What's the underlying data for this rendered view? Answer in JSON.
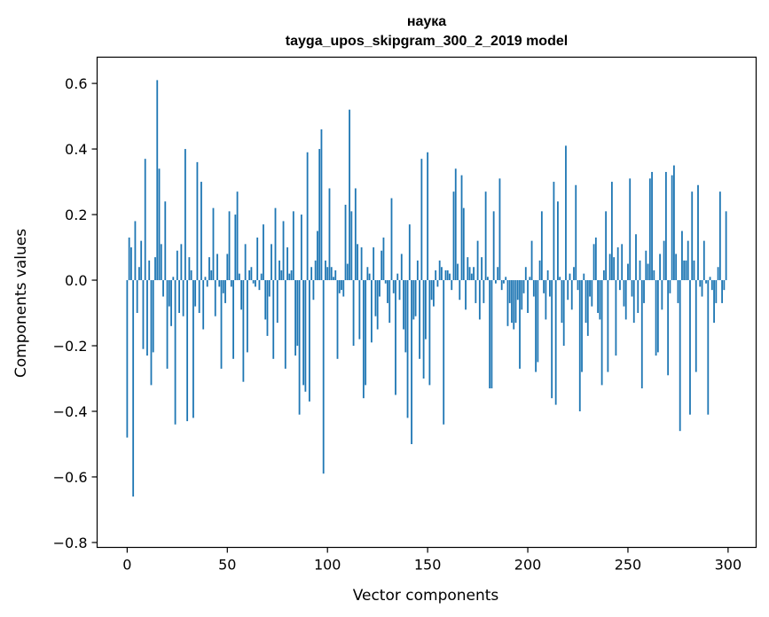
{
  "chart_data": {
    "type": "bar",
    "title": "наука",
    "subtitle": "tayga_upos_skipgram_300_2_2019 model",
    "xlabel": "Vector components",
    "ylabel": "Components values",
    "xlim": [
      -15,
      314
    ],
    "ylim": [
      -0.815,
      0.68
    ],
    "xticks": [
      0,
      50,
      100,
      150,
      200,
      250,
      300
    ],
    "xtick_labels": [
      "0",
      "50",
      "100",
      "150",
      "200",
      "250",
      "300"
    ],
    "yticks": [
      -0.8,
      -0.6,
      -0.4,
      -0.2,
      0.0,
      0.2,
      0.4,
      0.6
    ],
    "ytick_labels": [
      "−0.8",
      "−0.6",
      "−0.4",
      "−0.2",
      "0.0",
      "0.2",
      "0.4",
      "0.6"
    ],
    "bar_color": "#1f77b4",
    "grid": false,
    "values": [
      -0.48,
      0.13,
      0.1,
      -0.66,
      0.18,
      -0.1,
      0.04,
      0.12,
      -0.21,
      0.37,
      -0.23,
      0.06,
      -0.32,
      -0.22,
      0.07,
      0.61,
      0.34,
      0.11,
      -0.05,
      0.24,
      -0.27,
      -0.08,
      -0.14,
      0.01,
      -0.44,
      0.09,
      -0.1,
      0.11,
      -0.11,
      0.4,
      -0.43,
      0.07,
      0.03,
      -0.42,
      -0.08,
      0.36,
      -0.1,
      0.3,
      -0.15,
      0.01,
      -0.02,
      0.07,
      0.03,
      0.22,
      -0.11,
      0.08,
      -0.02,
      -0.27,
      -0.04,
      -0.07,
      0.08,
      0.21,
      -0.02,
      -0.24,
      0.2,
      0.27,
      0.02,
      -0.09,
      -0.31,
      0.11,
      -0.22,
      0.03,
      0.04,
      -0.01,
      -0.02,
      0.13,
      -0.03,
      0.02,
      0.17,
      -0.12,
      -0.17,
      -0.05,
      0.11,
      -0.24,
      0.22,
      -0.13,
      0.06,
      0.03,
      0.18,
      -0.27,
      0.1,
      0.02,
      0.03,
      0.21,
      -0.23,
      -0.2,
      -0.41,
      0.2,
      -0.32,
      -0.34,
      0.39,
      -0.37,
      0.04,
      -0.06,
      0.06,
      0.15,
      0.4,
      0.46,
      -0.59,
      0.06,
      0.04,
      0.28,
      0.04,
      0.01,
      0.03,
      -0.24,
      -0.04,
      -0.03,
      -0.05,
      0.23,
      0.05,
      0.52,
      0.21,
      -0.2,
      0.28,
      0.11,
      -0.18,
      0.1,
      -0.36,
      -0.32,
      0.04,
      0.02,
      -0.19,
      0.1,
      -0.11,
      -0.15,
      -0.05,
      0.09,
      0.13,
      -0.01,
      -0.07,
      -0.13,
      0.25,
      -0.04,
      -0.35,
      0.02,
      -0.06,
      0.08,
      -0.15,
      -0.22,
      -0.42,
      0.17,
      -0.5,
      -0.12,
      -0.11,
      0.06,
      -0.24,
      0.37,
      -0.3,
      -0.18,
      0.39,
      -0.32,
      -0.06,
      -0.08,
      0.03,
      -0.02,
      0.06,
      0.04,
      -0.44,
      0.03,
      0.03,
      0.02,
      -0.03,
      0.27,
      0.34,
      0.05,
      -0.06,
      0.32,
      0.22,
      -0.09,
      0.07,
      0.04,
      0.02,
      0.04,
      -0.07,
      0.12,
      -0.12,
      0.07,
      -0.07,
      0.27,
      0.01,
      -0.33,
      -0.33,
      0.21,
      -0.01,
      0.04,
      0.31,
      -0.03,
      -0.01,
      0.01,
      -0.14,
      -0.07,
      -0.13,
      -0.15,
      -0.13,
      -0.06,
      -0.27,
      -0.09,
      -0.04,
      0.04,
      -0.1,
      0.01,
      0.12,
      -0.05,
      -0.28,
      -0.25,
      0.06,
      0.21,
      -0.04,
      -0.12,
      0.03,
      -0.05,
      -0.36,
      0.3,
      -0.38,
      0.24,
      0.01,
      -0.13,
      -0.2,
      0.41,
      -0.06,
      0.02,
      -0.09,
      0.04,
      0.29,
      -0.03,
      -0.4,
      -0.28,
      0.02,
      -0.13,
      -0.17,
      -0.05,
      -0.08,
      0.11,
      0.13,
      -0.1,
      -0.12,
      -0.32,
      0.03,
      0.21,
      -0.28,
      0.08,
      0.3,
      0.07,
      -0.23,
      0.1,
      -0.03,
      0.11,
      -0.08,
      -0.12,
      0.05,
      0.31,
      -0.05,
      -0.13,
      0.14,
      -0.1,
      0.06,
      -0.33,
      -0.07,
      0.09,
      0.05,
      0.31,
      0.33,
      0.03,
      -0.23,
      -0.22,
      0.08,
      -0.09,
      0.12,
      0.33,
      -0.29,
      -0.04,
      0.32,
      0.35,
      0.08,
      -0.07,
      -0.46,
      0.15,
      0.06,
      0.06,
      0.12,
      -0.41,
      0.27,
      0.06,
      -0.28,
      0.29,
      -0.02,
      -0.05,
      0.12,
      -0.01,
      -0.41,
      0.01,
      -0.03,
      -0.13,
      -0.07,
      0.04,
      0.27,
      -0.07,
      -0.03,
      0.21
    ]
  }
}
